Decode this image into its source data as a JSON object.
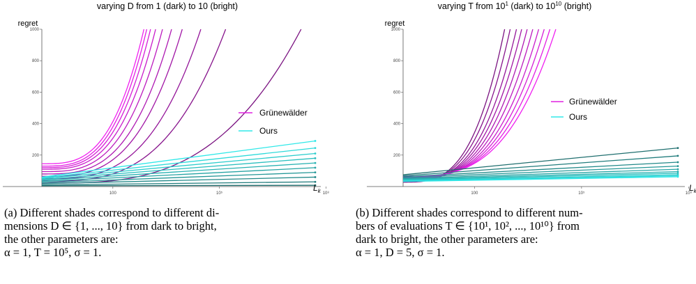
{
  "chart_data": [
    {
      "type": "line",
      "title": "varying D from 1 (dark) to 10 (bright)",
      "ylabel": "regret",
      "xlabel": "L",
      "xlabel_sub": "k",
      "x_scale": "log",
      "xlim": [
        1,
        50000000
      ],
      "ylim": [
        0,
        1000
      ],
      "yticks": [
        "200",
        "400",
        "600",
        "800",
        "1000"
      ],
      "xticks": [
        "100",
        "10⁵",
        "10⁸"
      ],
      "xtick_values": [
        100,
        100000,
        100000000
      ],
      "ytick_values": [
        200,
        400,
        600,
        800,
        1000
      ],
      "legend": {
        "placement": "right",
        "entries": [
          {
            "label": "Grünewälder",
            "color": "#e020e0"
          },
          {
            "label": "Ours",
            "color": "#30e8e8"
          }
        ]
      },
      "series": [
        {
          "method": "Grünewälder",
          "shades": 10,
          "dark_color": "#7a1280",
          "bright_color": "#f020f0",
          "start_values": [
            22,
            35,
            50,
            65,
            80,
            95,
            110,
            120,
            130,
            145
          ],
          "L_at_regret_1000": [
            20000000,
            150000,
            30000,
            9000,
            4500,
            2500,
            1600,
            1150,
            900,
            750
          ]
        },
        {
          "method": "Ours",
          "shades": 10,
          "dark_color": "#1e6e6e",
          "bright_color": "#30e8e8",
          "start_values": [
            5,
            10,
            18,
            25,
            32,
            38,
            44,
            50,
            55,
            60
          ],
          "end_values": [
            8,
            30,
            60,
            90,
            120,
            150,
            180,
            210,
            245,
            290
          ]
        }
      ]
    },
    {
      "type": "line",
      "title": "varying T from 10",
      "title_sup1": "1",
      "title_mid": " (dark) to 10",
      "title_sup2": "10",
      "title_end": " (bright)",
      "ylabel": "regret",
      "xlabel": "L",
      "xlabel_sub": "k",
      "x_scale": "log",
      "xlim": [
        1,
        50000000
      ],
      "ylim": [
        0,
        1000
      ],
      "yticks": [
        "200",
        "400",
        "600",
        "800",
        "1000"
      ],
      "xticks": [
        "100",
        "10⁵",
        "10⁸"
      ],
      "xtick_values": [
        100,
        100000,
        100000000
      ],
      "ytick_values": [
        200,
        400,
        600,
        800,
        1000
      ],
      "legend": {
        "placement": "right",
        "entries": [
          {
            "label": "Grünewälder",
            "color": "#e020e0"
          },
          {
            "label": "Ours",
            "color": "#30e8e8"
          }
        ]
      },
      "series": [
        {
          "method": "Grünewälder",
          "shades": 10,
          "dark_color": "#7a1280",
          "bright_color": "#f020f0",
          "start_values": [
            28,
            32,
            36,
            40,
            44,
            48,
            52,
            56,
            60,
            65
          ],
          "L_at_regret_1000": [
            700,
            1000,
            1500,
            2100,
            3000,
            4300,
            6300,
            9000,
            13000,
            19000
          ]
        },
        {
          "method": "Ours",
          "shades": 10,
          "dark_color": "#1e6e6e",
          "bright_color": "#30e8e8",
          "start_values": [
            75,
            68,
            62,
            56,
            50,
            46,
            42,
            38,
            35,
            32
          ],
          "end_values": [
            245,
            195,
            155,
            130,
            110,
            95,
            85,
            75,
            68,
            62
          ]
        }
      ]
    }
  ],
  "captions": [
    {
      "line1": "(a) Different shades correspond to different di-",
      "line2": "mensions D ∈ {1, ..., 10} from dark to bright,",
      "line3": "the other parameters are:",
      "line4": "α = 1, T = 10⁵, σ = 1."
    },
    {
      "line1": "(b) Different shades correspond to different num-",
      "line2": "bers of evaluations T ∈ {10¹, 10², ..., 10¹⁰} from",
      "line3": "dark to bright, the other parameters are:",
      "line4": "α = 1, D = 5, σ = 1."
    }
  ]
}
